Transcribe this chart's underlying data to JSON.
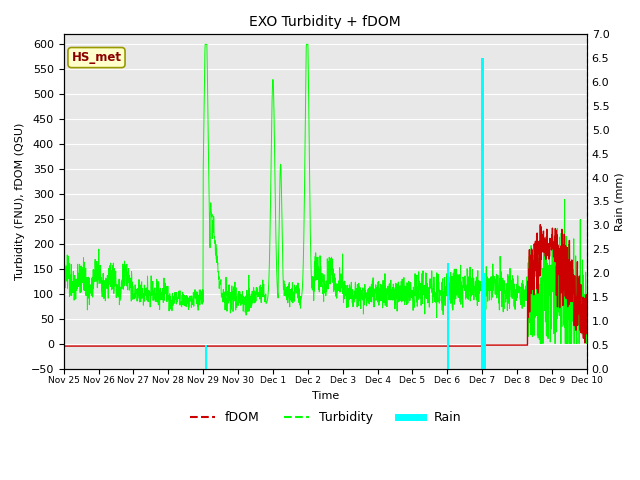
{
  "title": "EXO Turbidity + fDOM",
  "ylabel_left": "Turbidity (FNU), fDOM (QSU)",
  "ylabel_right": "Rain (mm)",
  "xlabel": "Time",
  "ylim_left": [
    -50,
    620
  ],
  "ylim_right": [
    0.0,
    7.0
  ],
  "yticks_left": [
    -50,
    0,
    50,
    100,
    150,
    200,
    250,
    300,
    350,
    400,
    450,
    500,
    550,
    600
  ],
  "yticks_right": [
    0.0,
    0.5,
    1.0,
    1.5,
    2.0,
    2.5,
    3.0,
    3.5,
    4.0,
    4.5,
    5.0,
    5.5,
    6.0,
    6.5,
    7.0
  ],
  "xtick_labels": [
    "Nov 25",
    "Nov 26",
    "Nov 27",
    "Nov 28",
    "Nov 29",
    "Nov 30",
    "Dec 1",
    "Dec 2",
    "Dec 3",
    "Dec 4",
    "Dec 5",
    "Dec 6",
    "Dec 7",
    "Dec 8",
    "Dec 9",
    "Dec 10"
  ],
  "annotation_label": "HS_met",
  "annotation_color_text": "#8B0000",
  "annotation_color_bg": "#FFFFCC",
  "annotation_color_border": "#999900",
  "turbidity_color": "#00FF00",
  "fdom_color": "#CC0000",
  "rain_color": "#00FFFF",
  "background_color": "#E8E8E8",
  "figsize": [
    6.4,
    4.8
  ],
  "dpi": 100
}
